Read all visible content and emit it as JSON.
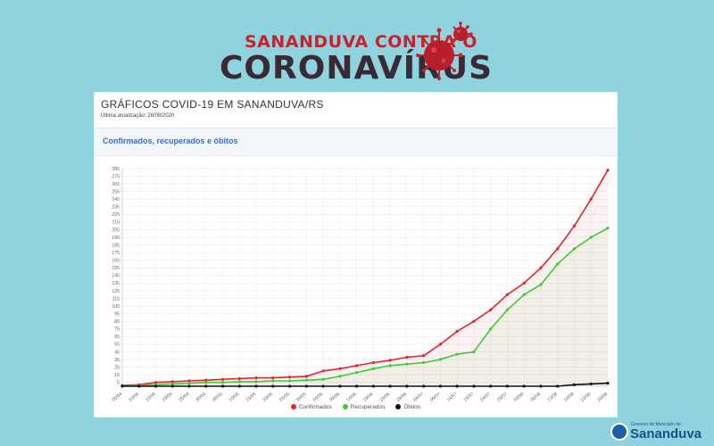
{
  "banner": {
    "line1": "SANANDUVA CONTRA O",
    "line2": "CORONAVÍRUS"
  },
  "card": {
    "title": "GRÁFICOS COVID-19 EM SANANDUVA/RS",
    "update": "Última atualização: 28/08/2020",
    "subtitle": "Confirmados, recuperados e óbitos"
  },
  "logo": {
    "small_text": "Governo do Município de",
    "name": "Sananduva",
    "icon": "municipal-emblem-icon"
  },
  "colors": {
    "confirmed": "#e3262b",
    "recovered": "#3fc93a",
    "deaths": "#111111",
    "background": "#8fd3de"
  },
  "chart_data": {
    "type": "line",
    "title": "",
    "xlabel": "",
    "ylabel": "",
    "ylim": [
      0,
      285
    ],
    "yticks": [
      5,
      15,
      25,
      35,
      45,
      55,
      65,
      75,
      85,
      95,
      105,
      115,
      125,
      135,
      145,
      155,
      165,
      175,
      185,
      195,
      205,
      215,
      225,
      235,
      245,
      255,
      265,
      275,
      285
    ],
    "x_tick_labels": [
      "05/04",
      "10/04",
      "15/04",
      "20/04",
      "25/04",
      "30/04",
      "05/05",
      "10/05",
      "15/05",
      "20/05",
      "25/05",
      "30/05",
      "04/06",
      "09/06",
      "14/06",
      "19/06",
      "24/06",
      "29/06",
      "04/07",
      "09/07",
      "14/07",
      "19/07",
      "24/07",
      "29/07",
      "03/08",
      "08/08",
      "13/08",
      "18/08",
      "23/08",
      "28/08"
    ],
    "x": [
      "05/04",
      "10/04",
      "15/04",
      "20/04",
      "25/04",
      "30/04",
      "05/05",
      "10/05",
      "15/05",
      "20/05",
      "25/05",
      "30/05",
      "04/06",
      "09/06",
      "14/06",
      "19/06",
      "24/06",
      "29/06",
      "04/07",
      "09/07",
      "14/07",
      "19/07",
      "24/07",
      "29/07",
      "03/08",
      "08/08",
      "13/08",
      "18/08",
      "23/08",
      "28/08"
    ],
    "series": [
      {
        "name": "Confirmados",
        "color": "#e3262b",
        "values": [
          1,
          2,
          5,
          6,
          7,
          8,
          9,
          10,
          11,
          11,
          12,
          13,
          20,
          23,
          27,
          31,
          34,
          38,
          40,
          55,
          72,
          85,
          100,
          120,
          135,
          155,
          180,
          210,
          245,
          283
        ]
      },
      {
        "name": "Recuperados",
        "color": "#3fc93a",
        "values": [
          0,
          1,
          2,
          3,
          4,
          5,
          5,
          6,
          6,
          7,
          7,
          8,
          9,
          13,
          18,
          23,
          27,
          29,
          31,
          35,
          42,
          45,
          75,
          100,
          120,
          133,
          160,
          180,
          195,
          207
        ]
      },
      {
        "name": "Óbitos",
        "color": "#111111",
        "values": [
          0,
          0,
          0,
          0,
          0,
          0,
          0,
          0,
          0,
          0,
          0,
          0,
          0,
          0,
          0,
          0,
          0,
          0,
          0,
          0,
          0,
          0,
          0,
          0,
          0,
          0,
          0,
          2,
          3,
          4
        ]
      }
    ],
    "grid": true,
    "legend_position": "bottom"
  }
}
